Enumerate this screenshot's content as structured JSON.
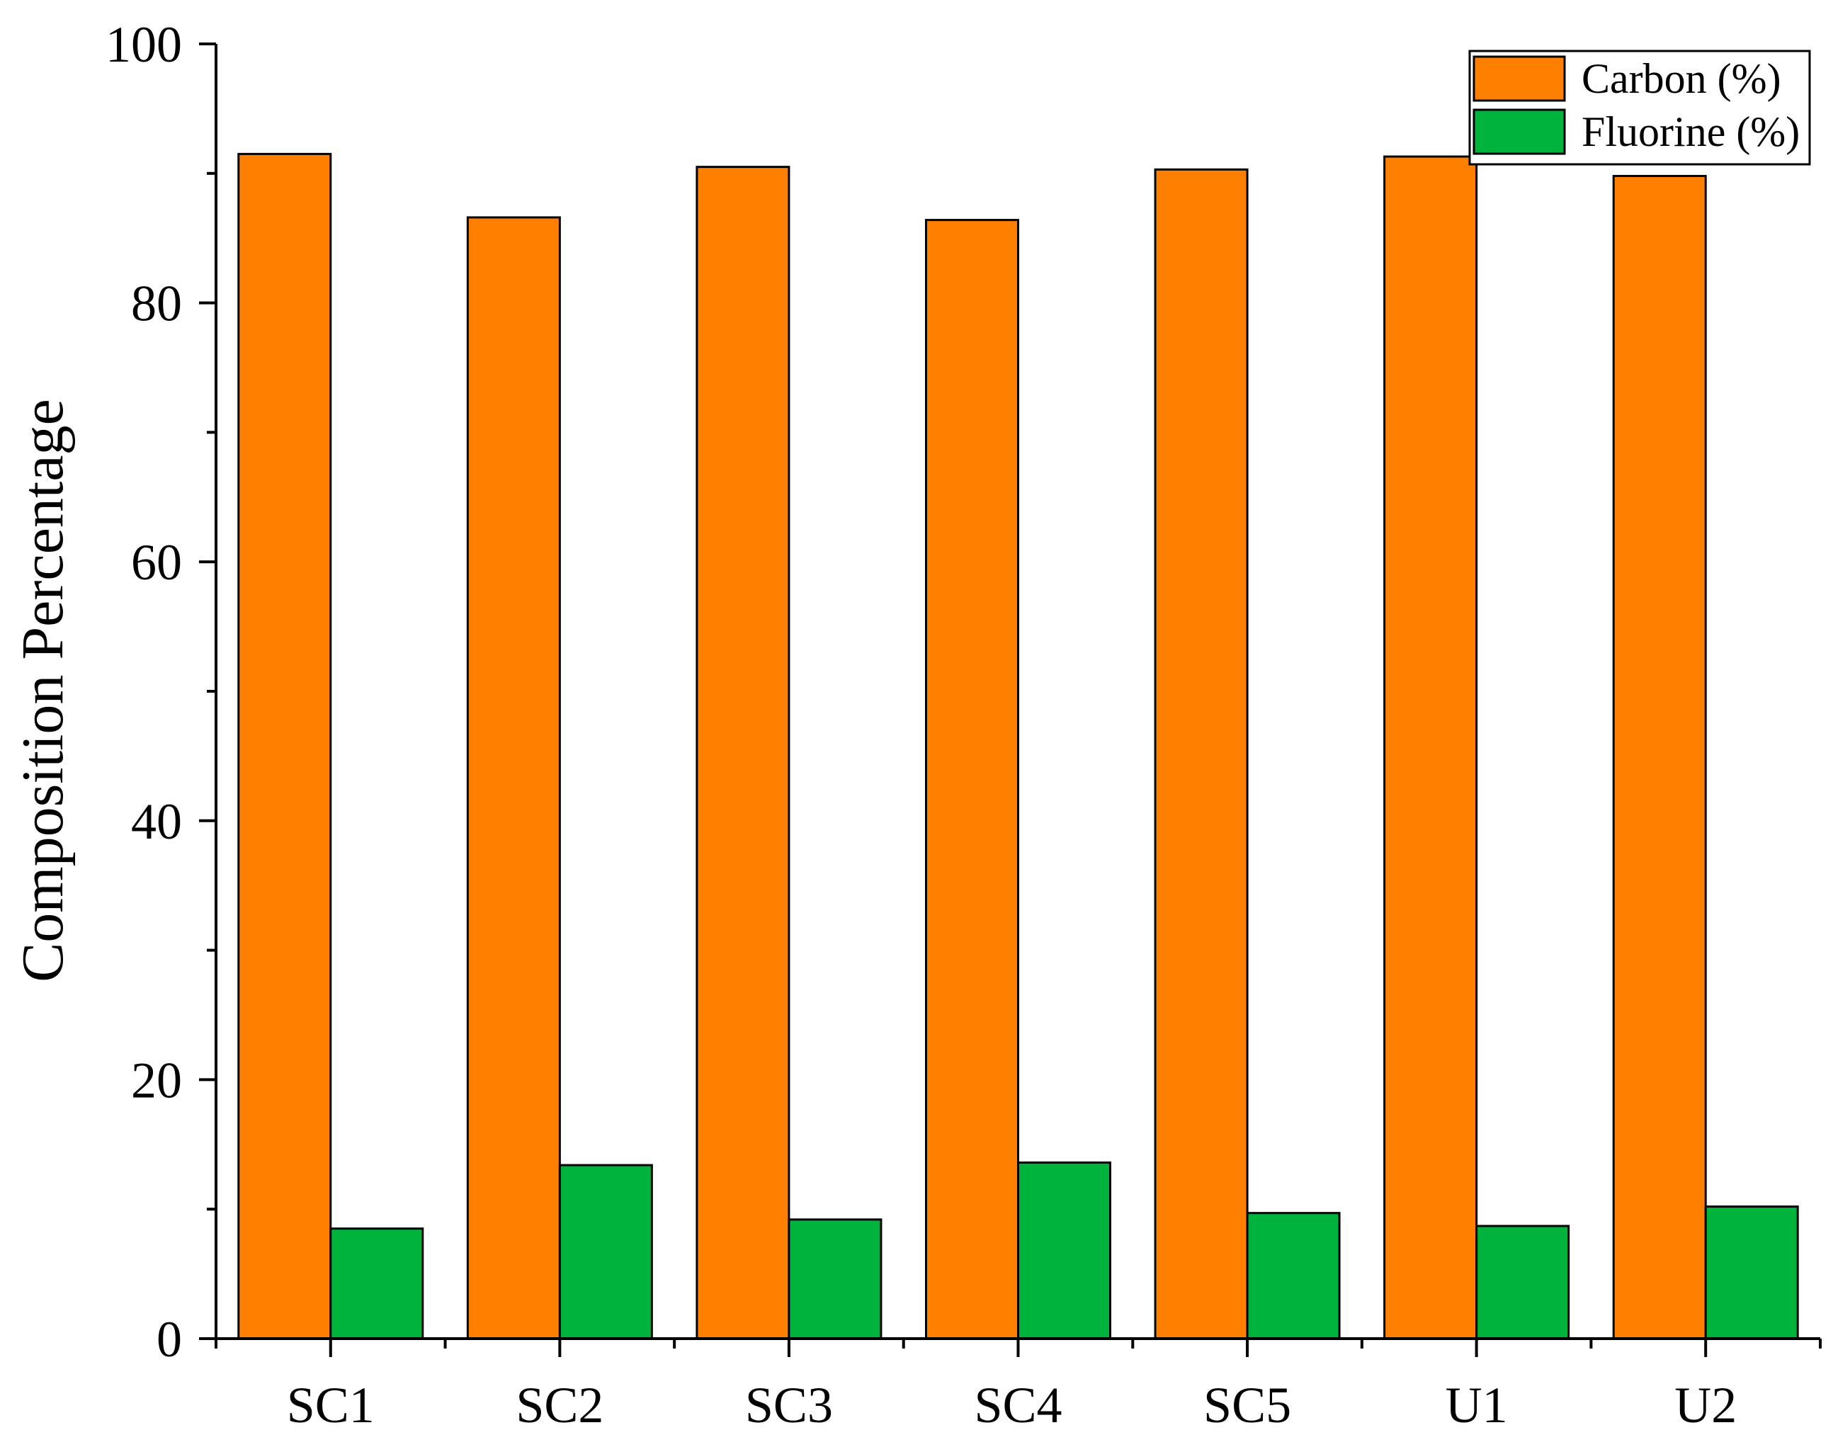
{
  "chart_data": {
    "type": "bar",
    "title": "",
    "xlabel": "",
    "ylabel": "Composition Percentage",
    "ylim": [
      0,
      100
    ],
    "yticks": [
      "0",
      "20",
      "40",
      "60",
      "80",
      "100"
    ],
    "categories": [
      "SC1",
      "SC2",
      "SC3",
      "SC4",
      "SC5",
      "U1",
      "U2"
    ],
    "series": [
      {
        "name": "Carbon (%)",
        "color": "#FF8000",
        "values": [
          91.5,
          86.6,
          90.5,
          86.4,
          90.3,
          91.3,
          89.8
        ]
      },
      {
        "name": "Fluorine (%)",
        "color": "#00B33C",
        "values": [
          8.5,
          13.4,
          9.2,
          13.6,
          9.7,
          8.7,
          10.2
        ]
      }
    ],
    "legend_position": "top-right",
    "grid": false
  }
}
